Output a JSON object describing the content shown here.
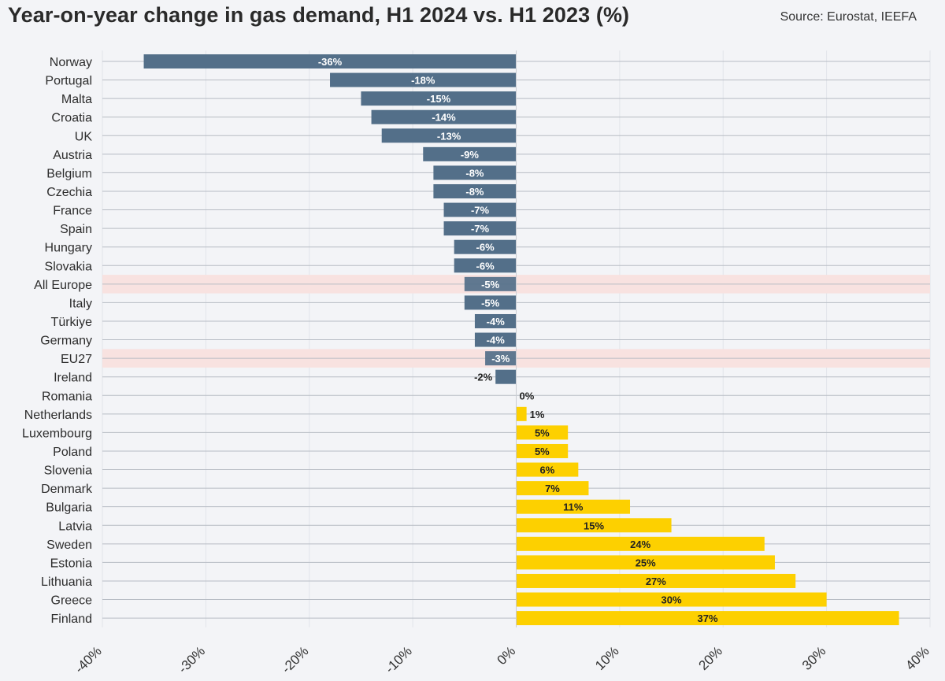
{
  "header": {
    "title": "Year-on-year change in gas demand, H1 2024 vs. H1 2023 (%)",
    "source": "Source: Eurostat, IEEFA"
  },
  "colors": {
    "negative": "#536f89",
    "positive": "#fdd000",
    "highlight_band": "#f8e2e0",
    "gridline": "#b7bcc4",
    "negative_label": "#ffffff",
    "positive_label": "#222222"
  },
  "chart_data": {
    "type": "bar",
    "orientation": "horizontal",
    "title": "Year-on-year change in gas demand, H1 2024 vs. H1 2023 (%)",
    "xlim": [
      -40,
      40
    ],
    "ticks": [
      -40,
      -30,
      -20,
      -10,
      0,
      10,
      20,
      30,
      40
    ],
    "tick_labels": [
      "-40%",
      "-30%",
      "-20%",
      "-10%",
      "0%",
      "10%",
      "20%",
      "30%",
      "40%"
    ],
    "highlighted": [
      "All Europe",
      "EU27"
    ],
    "categories": [
      "Norway",
      "Portugal",
      "Malta",
      "Croatia",
      "UK",
      "Austria",
      "Belgium",
      "Czechia",
      "France",
      "Spain",
      "Hungary",
      "Slovakia",
      "All Europe",
      "Italy",
      "Türkiye",
      "Germany",
      "EU27",
      "Ireland",
      "Romania",
      "Netherlands",
      "Luxembourg",
      "Poland",
      "Slovenia",
      "Denmark",
      "Bulgaria",
      "Latvia",
      "Sweden",
      "Estonia",
      "Lithuania",
      "Greece",
      "Finland"
    ],
    "values": [
      -36,
      -18,
      -15,
      -14,
      -13,
      -9,
      -8,
      -8,
      -7,
      -7,
      -6,
      -6,
      -5,
      -5,
      -4,
      -4,
      -3,
      -2,
      0,
      1,
      5,
      5,
      6,
      7,
      11,
      15,
      24,
      25,
      27,
      30,
      37
    ],
    "value_labels": [
      "-36%",
      "-18%",
      "-15%",
      "-14%",
      "-13%",
      "-9%",
      "-8%",
      "-8%",
      "-7%",
      "-7%",
      "-6%",
      "-6%",
      "-5%",
      "-5%",
      "-4%",
      "-4%",
      "-3%",
      "-2%",
      "0%",
      "1%",
      "5%",
      "5%",
      "6%",
      "7%",
      "11%",
      "15%",
      "24%",
      "25%",
      "27%",
      "30%",
      "37%"
    ]
  }
}
